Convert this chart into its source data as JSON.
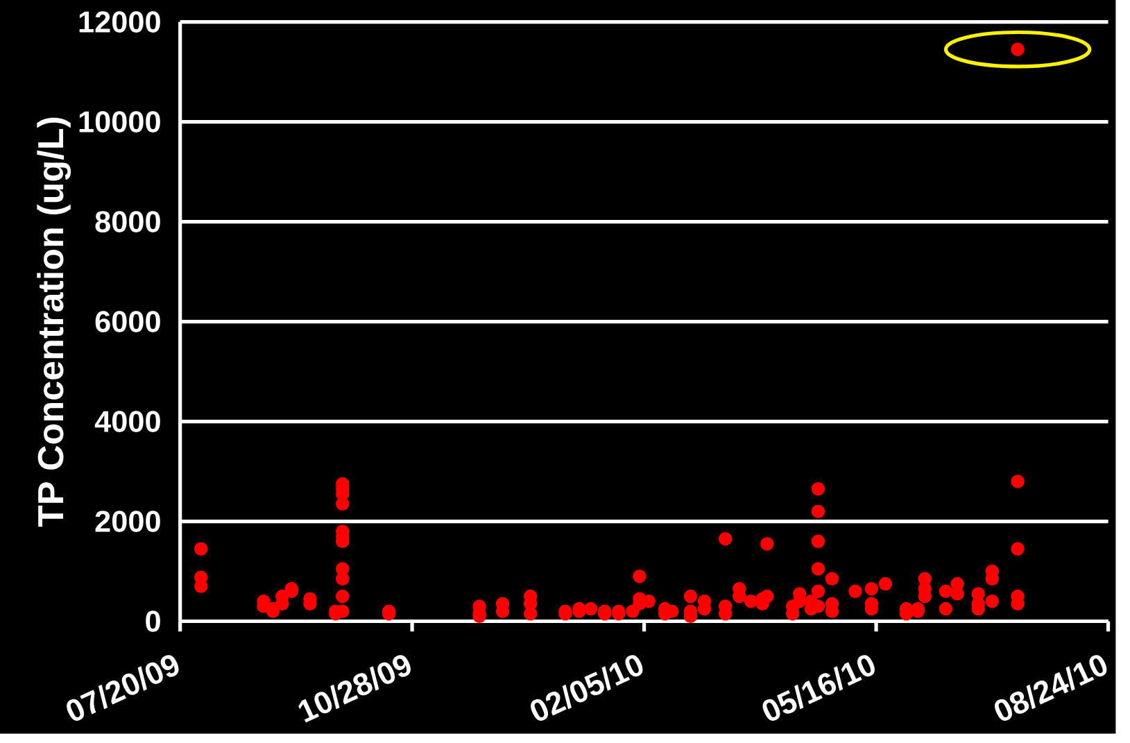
{
  "chart_data": {
    "type": "scatter",
    "ylabel": "TP Concentration (ug/L)",
    "x": [
      "2009-07-29",
      "2009-07-29",
      "2009-07-29",
      "2009-08-25",
      "2009-08-25",
      "2009-08-29",
      "2009-08-29",
      "2009-09-02",
      "2009-09-02",
      "2009-09-06",
      "2009-09-06",
      "2009-09-14",
      "2009-09-14",
      "2009-09-25",
      "2009-09-25",
      "2009-09-28",
      "2009-09-28",
      "2009-09-28",
      "2009-09-28",
      "2009-09-28",
      "2009-09-28",
      "2009-09-28",
      "2009-09-28",
      "2009-09-28",
      "2009-09-28",
      "2009-09-28",
      "2009-10-18",
      "2009-10-18",
      "2009-11-26",
      "2009-11-26",
      "2009-11-26",
      "2009-12-06",
      "2009-12-06",
      "2009-12-18",
      "2009-12-18",
      "2009-12-18",
      "2010-01-02",
      "2010-01-02",
      "2010-01-08",
      "2010-01-08",
      "2010-01-13",
      "2010-01-19",
      "2010-01-19",
      "2010-01-25",
      "2010-01-25",
      "2010-01-31",
      "2010-02-03",
      "2010-02-03",
      "2010-02-03",
      "2010-02-07",
      "2010-02-14",
      "2010-02-14",
      "2010-02-17",
      "2010-02-25",
      "2010-02-25",
      "2010-02-25",
      "2010-03-03",
      "2010-03-03",
      "2010-03-12",
      "2010-03-12",
      "2010-03-12",
      "2010-03-18",
      "2010-03-18",
      "2010-03-23",
      "2010-03-28",
      "2010-03-28",
      "2010-03-30",
      "2010-03-30",
      "2010-04-10",
      "2010-04-10",
      "2010-04-13",
      "2010-04-13",
      "2010-04-18",
      "2010-04-18",
      "2010-04-21",
      "2010-04-21",
      "2010-04-21",
      "2010-04-21",
      "2010-04-21",
      "2010-04-21",
      "2010-04-27",
      "2010-04-27",
      "2010-04-27",
      "2010-05-07",
      "2010-05-14",
      "2010-05-14",
      "2010-05-14",
      "2010-05-20",
      "2010-05-29",
      "2010-05-29",
      "2010-06-03",
      "2010-06-03",
      "2010-06-06",
      "2010-06-06",
      "2010-06-06",
      "2010-06-15",
      "2010-06-15",
      "2010-06-20",
      "2010-06-20",
      "2010-06-29",
      "2010-06-29",
      "2010-06-29",
      "2010-07-05",
      "2010-07-05",
      "2010-07-05",
      "2010-07-16",
      "2010-07-16",
      "2010-07-16",
      "2010-07-16",
      "2010-07-16"
    ],
    "values": [
      1450,
      880,
      700,
      400,
      300,
      250,
      200,
      350,
      500,
      650,
      600,
      350,
      450,
      200,
      150,
      2750,
      2650,
      2550,
      2350,
      1800,
      1700,
      1600,
      1050,
      850,
      500,
      200,
      200,
      150,
      300,
      150,
      100,
      200,
      350,
      150,
      350,
      500,
      150,
      200,
      250,
      200,
      250,
      200,
      150,
      200,
      150,
      200,
      900,
      450,
      350,
      400,
      250,
      150,
      200,
      500,
      200,
      100,
      400,
      250,
      1650,
      300,
      150,
      650,
      500,
      400,
      350,
      450,
      1550,
      500,
      300,
      150,
      550,
      400,
      400,
      250,
      2650,
      2200,
      1600,
      1050,
      600,
      300,
      850,
      350,
      200,
      600,
      650,
      350,
      250,
      750,
      250,
      150,
      200,
      250,
      850,
      650,
      500,
      600,
      250,
      750,
      550,
      550,
      350,
      250,
      1000,
      850,
      400,
      11450,
      2800,
      1450,
      500,
      350
    ],
    "color": "#ff0000",
    "marker": "circle",
    "xlim": [
      "2009-07-20",
      "2010-08-24"
    ],
    "xticks": [
      {
        "value": "2009-07-20",
        "label": "07/20/09"
      },
      {
        "value": "2009-10-28",
        "label": "10/28/09"
      },
      {
        "value": "2010-02-05",
        "label": "02/05/10"
      },
      {
        "value": "2010-05-16",
        "label": "05/16/10"
      },
      {
        "value": "2010-08-24",
        "label": "08/24/10"
      }
    ],
    "ylim": [
      0,
      12000
    ],
    "yticks": [
      0,
      2000,
      4000,
      6000,
      8000,
      10000,
      12000
    ],
    "grid": "y"
  }
}
